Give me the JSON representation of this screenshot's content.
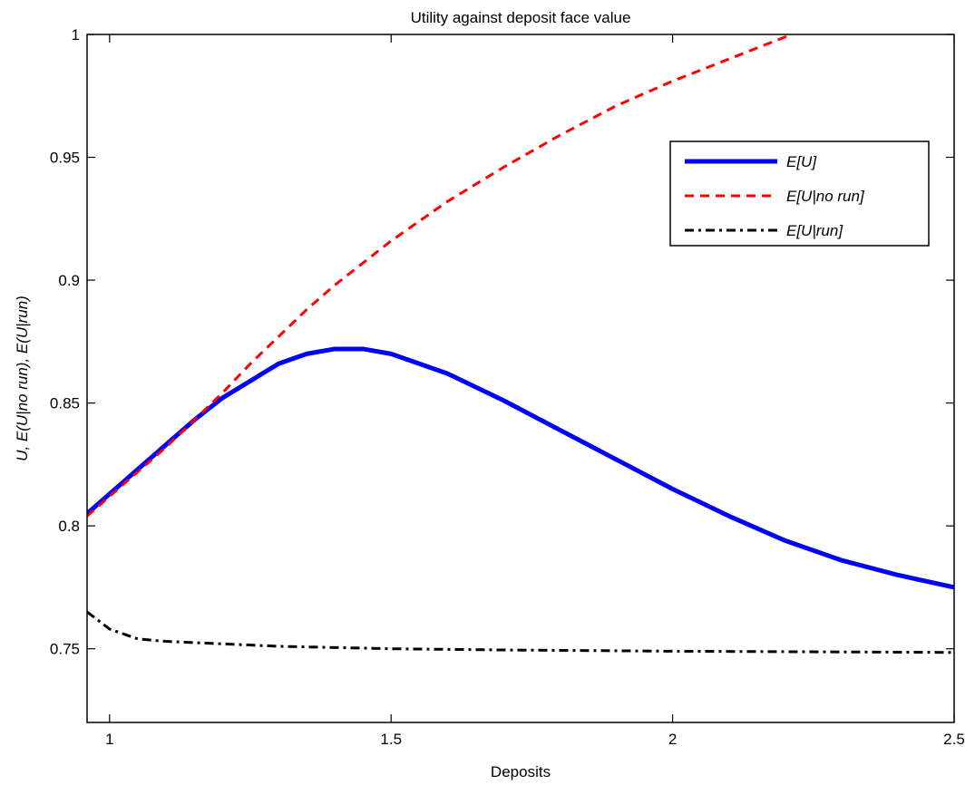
{
  "chart_data": {
    "type": "line",
    "title": "Utility against deposit face value",
    "xlabel": "Deposits",
    "ylabel": "U, E(U|no run), E(U|run)",
    "xlim": [
      0.96,
      2.5
    ],
    "ylim": [
      0.72,
      1.0
    ],
    "xticks": [
      1,
      1.5,
      2,
      2.5
    ],
    "xtick_labels": [
      "1",
      "1.5",
      "2",
      "2.5"
    ],
    "yticks": [
      0.75,
      0.8,
      0.85,
      0.9,
      0.95,
      1.0
    ],
    "ytick_labels": [
      "0.75",
      "0.8",
      "0.85",
      "0.9",
      "0.95",
      "1"
    ],
    "grid": false,
    "legend_position": "top-right",
    "series": [
      {
        "name": "E[U]",
        "color": "#0000ff",
        "style": "solid",
        "x": [
          0.96,
          1.0,
          1.05,
          1.1,
          1.15,
          1.2,
          1.25,
          1.3,
          1.35,
          1.4,
          1.45,
          1.5,
          1.6,
          1.7,
          1.8,
          1.9,
          2.0,
          2.1,
          2.2,
          2.3,
          2.4,
          2.5
        ],
        "y": [
          0.805,
          0.813,
          0.823,
          0.833,
          0.843,
          0.852,
          0.859,
          0.866,
          0.87,
          0.872,
          0.872,
          0.87,
          0.862,
          0.851,
          0.839,
          0.827,
          0.815,
          0.804,
          0.794,
          0.786,
          0.78,
          0.775
        ]
      },
      {
        "name": "E[U|no run]",
        "color": "#ff0000",
        "style": "dashed",
        "x": [
          0.96,
          1.0,
          1.05,
          1.1,
          1.15,
          1.2,
          1.25,
          1.3,
          1.35,
          1.4,
          1.5,
          1.6,
          1.7,
          1.8,
          1.9,
          2.0,
          2.1,
          2.2,
          2.21
        ],
        "y": [
          0.804,
          0.812,
          0.822,
          0.832,
          0.843,
          0.854,
          0.866,
          0.877,
          0.888,
          0.898,
          0.916,
          0.932,
          0.946,
          0.959,
          0.971,
          0.981,
          0.99,
          0.999,
          1.0
        ]
      },
      {
        "name": "E[U|run]",
        "color": "#000000",
        "style": "dashdot",
        "x": [
          0.96,
          1.0,
          1.05,
          1.1,
          1.2,
          1.3,
          1.4,
          1.5,
          1.7,
          2.0,
          2.5
        ],
        "y": [
          0.765,
          0.758,
          0.754,
          0.753,
          0.752,
          0.751,
          0.7505,
          0.75,
          0.7495,
          0.749,
          0.7485
        ]
      }
    ]
  }
}
